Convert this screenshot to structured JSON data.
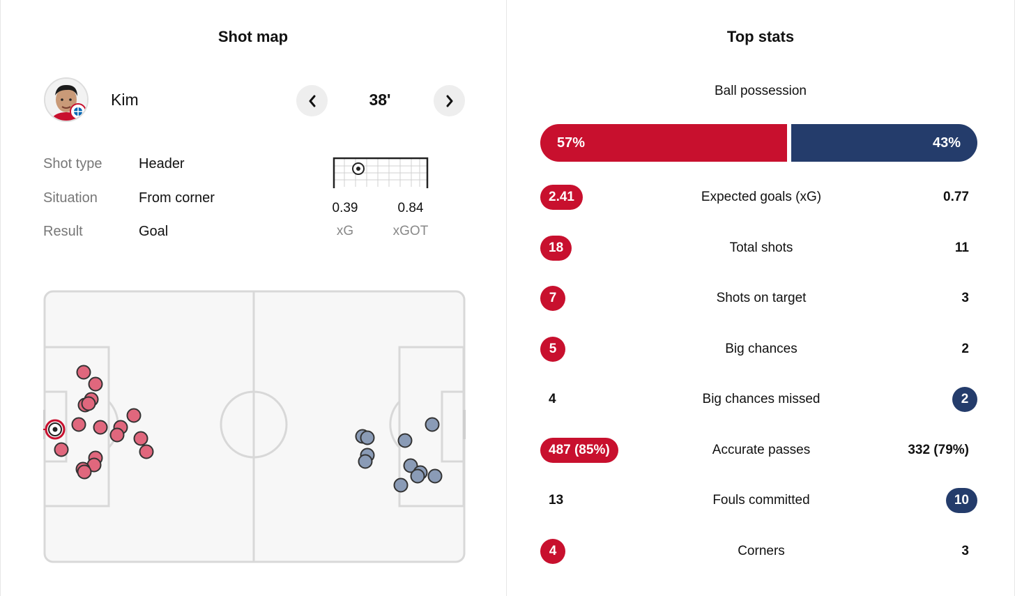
{
  "shot_map": {
    "title": "Shot map",
    "player": {
      "name": "Kim",
      "avatar_icon": "player-photo-icon"
    },
    "minute": "38'",
    "details": [
      {
        "label": "Shot type",
        "value": "Header"
      },
      {
        "label": "Situation",
        "value": "From corner"
      },
      {
        "label": "Result",
        "value": "Goal"
      }
    ],
    "metrics": [
      {
        "value": "0.39",
        "label": "xG"
      },
      {
        "value": "0.84",
        "label": "xGOT"
      }
    ],
    "colors": {
      "home_shot": "#e0677d",
      "away_shot": "#8a9bb6",
      "selected_ring": "#c8102e",
      "pitch_line": "#d8d8d8"
    }
  },
  "top_stats": {
    "title": "Top stats",
    "possession": {
      "label": "Ball possession",
      "home": "57%",
      "away": "43%",
      "home_value": 57,
      "away_value": 43
    },
    "rows": [
      {
        "name": "Expected goals (xG)",
        "home": "2.41",
        "away": "0.77",
        "leader": "home"
      },
      {
        "name": "Total shots",
        "home": "18",
        "away": "11",
        "leader": "home"
      },
      {
        "name": "Shots on target",
        "home": "7",
        "away": "3",
        "leader": "home"
      },
      {
        "name": "Big chances",
        "home": "5",
        "away": "2",
        "leader": "home"
      },
      {
        "name": "Big chances missed",
        "home": "4",
        "away": "2",
        "leader": "away"
      },
      {
        "name": "Accurate passes",
        "home": "487 (85%)",
        "away": "332 (79%)",
        "leader": "home"
      },
      {
        "name": "Fouls committed",
        "home": "13",
        "away": "10",
        "leader": "away"
      },
      {
        "name": "Corners",
        "home": "4",
        "away": "3",
        "leader": "home"
      }
    ],
    "colors": {
      "home": "#c8102e",
      "away": "#243c6b"
    }
  }
}
